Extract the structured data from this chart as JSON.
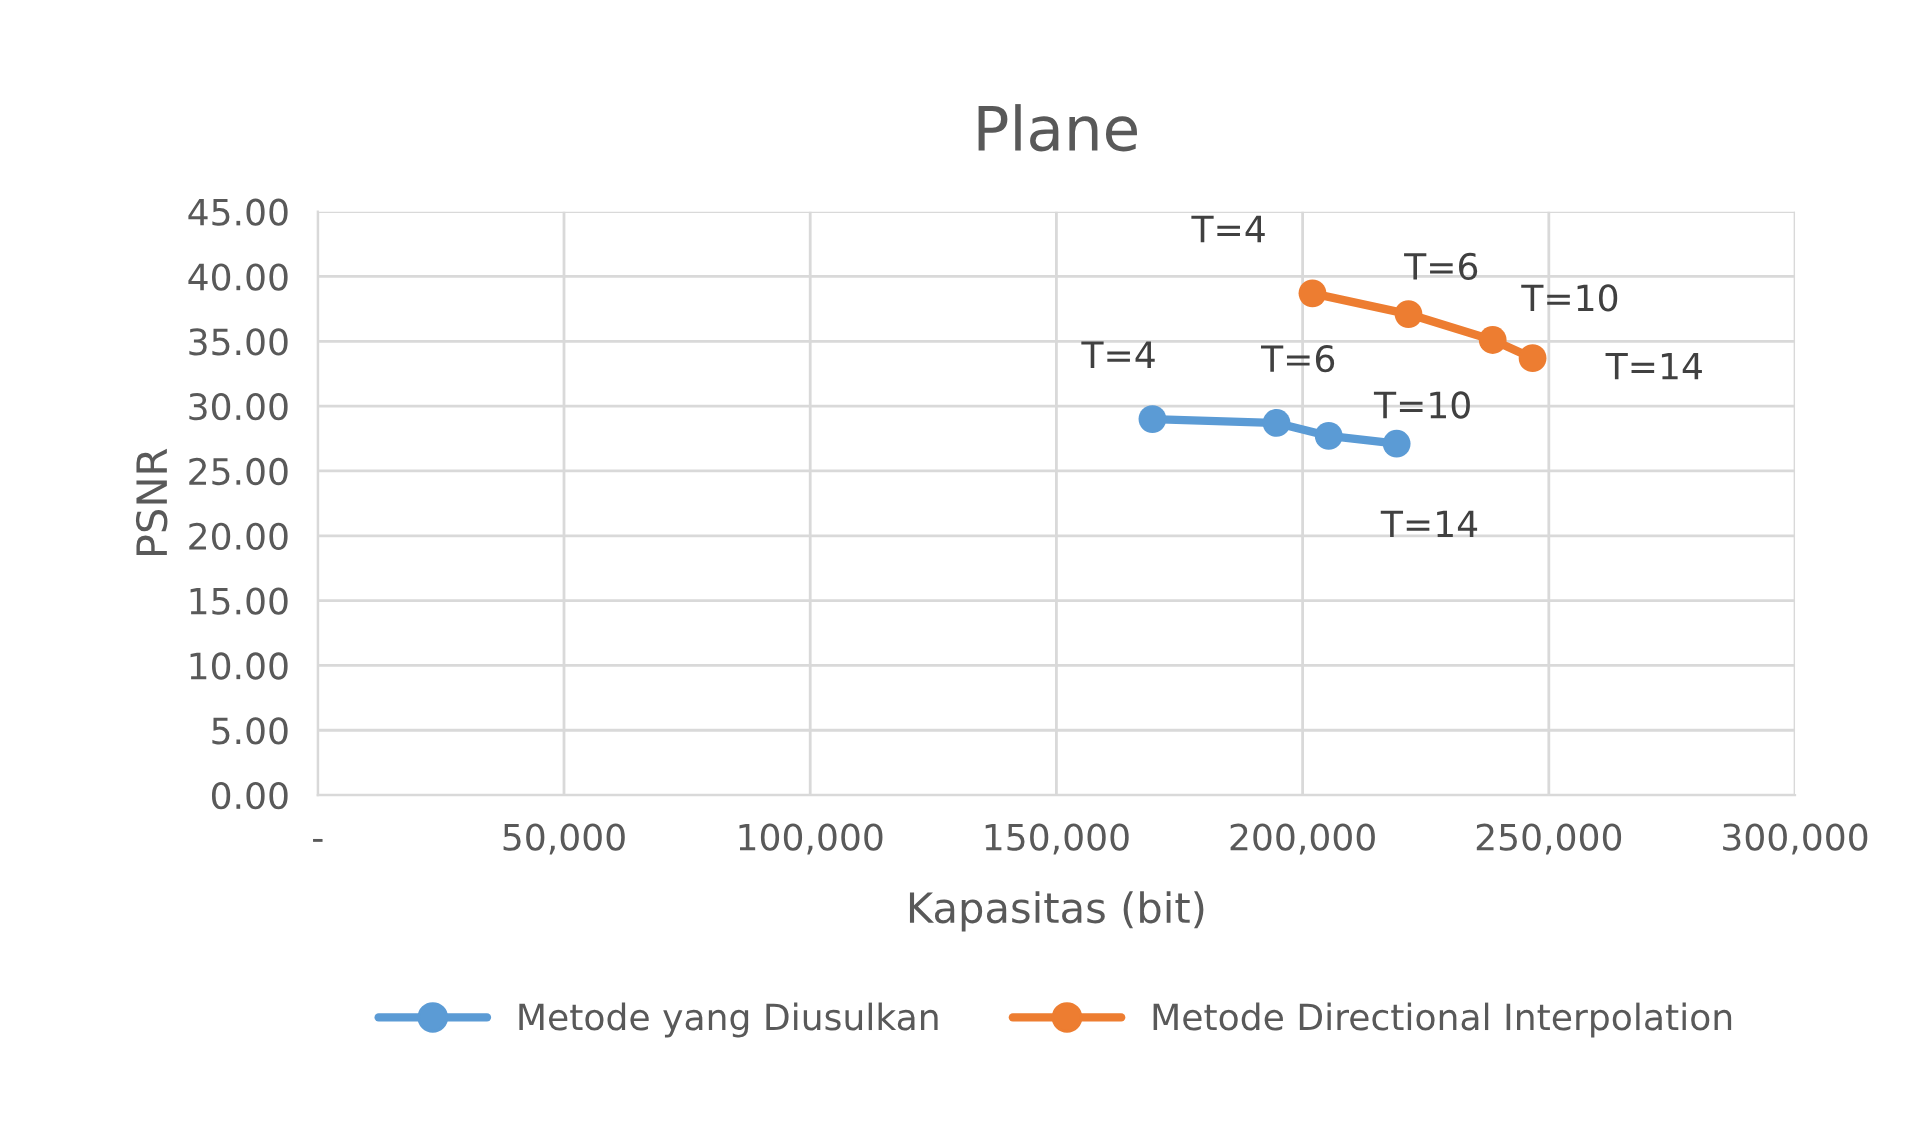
{
  "chart_data": {
    "type": "line",
    "title": "Plane",
    "xlabel": "Kapasitas (bit)",
    "ylabel": "PSNR",
    "series": [
      {
        "name": "Metode yang Diusulkan",
        "color": "#5b9bd5",
        "x": [
          169500,
          194700,
          205300,
          219100
        ],
        "values": [
          29.0,
          28.7,
          27.7,
          27.1
        ]
      },
      {
        "name": "Metode Directional Interpolation",
        "color": "#ed7d31",
        "x": [
          202000,
          221500,
          238600,
          246700
        ],
        "values": [
          38.7,
          37.1,
          35.1,
          33.7
        ]
      }
    ],
    "annotations": [
      {
        "text": "T=4",
        "x": 169500,
        "y": 29.0
      },
      {
        "text": "T=6",
        "x": 194700,
        "y": 28.7
      },
      {
        "text": "T=10",
        "x": 205300,
        "y": 27.7
      },
      {
        "text": "T=14",
        "x": 219100,
        "y": 27.1
      },
      {
        "text": "T=4",
        "x": 202000,
        "y": 38.7
      },
      {
        "text": "T=6",
        "x": 221500,
        "y": 37.1
      },
      {
        "text": "T=10",
        "x": 238600,
        "y": 35.1
      },
      {
        "text": "T=14",
        "x": 246700,
        "y": 33.7
      }
    ],
    "xlim": [
      0,
      300000
    ],
    "xticks": [
      {
        "value": 0,
        "label": "-"
      },
      {
        "value": 50000,
        "label": "50,000"
      },
      {
        "value": 100000,
        "label": "100,000"
      },
      {
        "value": 150000,
        "label": "150,000"
      },
      {
        "value": 200000,
        "label": "200,000"
      },
      {
        "value": 250000,
        "label": "250,000"
      },
      {
        "value": 300000,
        "label": "300,000"
      }
    ],
    "ylim": [
      0,
      45
    ],
    "yticks": [
      {
        "value": 0,
        "label": "0.00"
      },
      {
        "value": 5,
        "label": "5.00"
      },
      {
        "value": 10,
        "label": "10.00"
      },
      {
        "value": 15,
        "label": "15.00"
      },
      {
        "value": 20,
        "label": "20.00"
      },
      {
        "value": 25,
        "label": "25.00"
      },
      {
        "value": 30,
        "label": "30.00"
      },
      {
        "value": 35,
        "label": "35.00"
      },
      {
        "value": 40,
        "label": "40.00"
      },
      {
        "value": 45,
        "label": "45.00"
      }
    ],
    "grid": true,
    "legend": "bottom",
    "marker": "circle",
    "line_style": "solid"
  }
}
